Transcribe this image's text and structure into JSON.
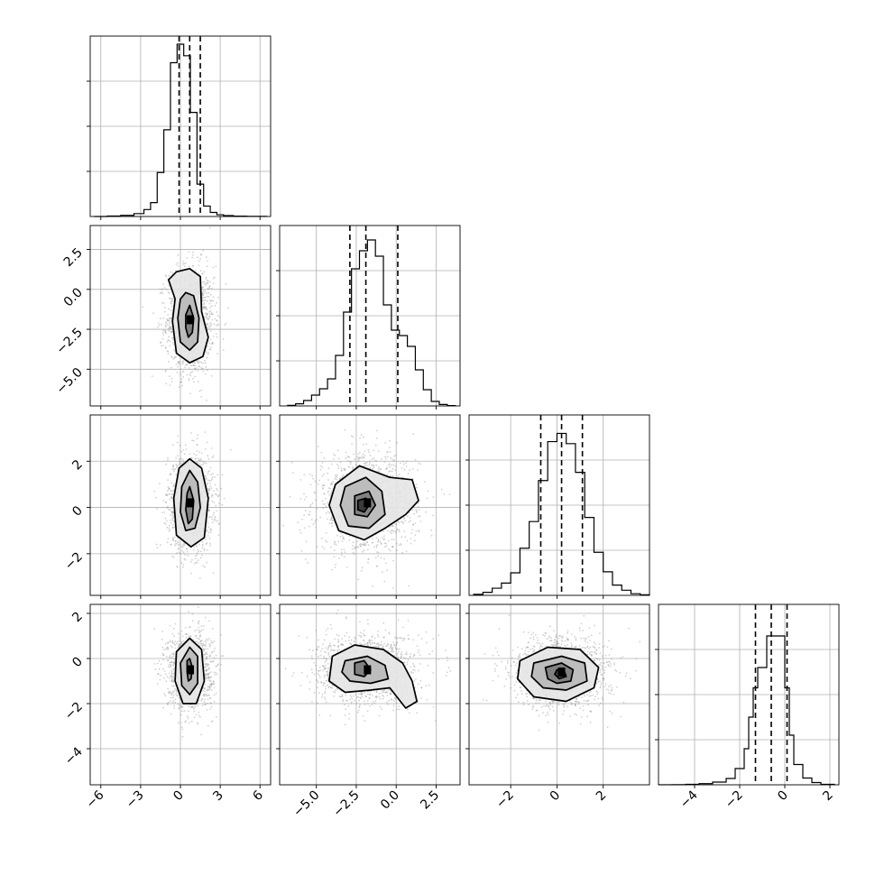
{
  "chart_data": {
    "type": "corner",
    "n_params": 4,
    "grid": true,
    "diagonal": [
      {
        "type": "histogram",
        "bin_edges": [
          -6.5,
          -5.5,
          -4.5,
          -3.5,
          -2.75,
          -2.25,
          -1.75,
          -1.25,
          -0.75,
          -0.25,
          0.25,
          0.75,
          1.25,
          1.75,
          2.25,
          2.75,
          3.25,
          4,
          5,
          6.5
        ],
        "counts": [
          0,
          4,
          10,
          25,
          60,
          120,
          380,
          750,
          1330,
          1490,
          1390,
          900,
          280,
          90,
          35,
          15,
          8,
          3,
          1
        ],
        "ylim": [
          0,
          1560
        ],
        "quantiles": [
          -0.1,
          0.7,
          1.5
        ],
        "xlim": [
          -6.8,
          6.8
        ],
        "xticks": [
          -6,
          -3,
          0,
          3,
          6
        ],
        "xtick_labels": [
          "−6",
          "−3",
          "0",
          "3",
          "6"
        ]
      },
      {
        "type": "histogram",
        "bin_edges": [
          -6.8,
          -6.3,
          -5.8,
          -5.3,
          -4.8,
          -4.3,
          -3.8,
          -3.3,
          -2.8,
          -2.3,
          -1.8,
          -1.3,
          -0.8,
          -0.3,
          0.2,
          0.7,
          1.2,
          1.7,
          2.2,
          2.7,
          3.2,
          3.7
        ],
        "counts": [
          3,
          12,
          30,
          60,
          95,
          150,
          280,
          520,
          760,
          860,
          920,
          830,
          560,
          420,
          390,
          330,
          200,
          90,
          25,
          8,
          2
        ],
        "ylim": [
          0,
          1000
        ],
        "quantiles": [
          -2.9,
          -1.9,
          0.1
        ],
        "xlim": [
          -7.3,
          4.0
        ],
        "xticks": [
          -5.0,
          -2.5,
          0.0,
          2.5
        ],
        "xtick_labels": [
          "−5.0",
          "−2.5",
          "0.0",
          "2.5"
        ]
      },
      {
        "type": "histogram",
        "bin_edges": [
          -3.6,
          -3.2,
          -2.8,
          -2.4,
          -2.0,
          -1.6,
          -1.2,
          -0.8,
          -0.4,
          0.0,
          0.4,
          0.8,
          1.2,
          1.6,
          2.0,
          2.4,
          2.8,
          3.2,
          3.6,
          4.0
        ],
        "counts": [
          5,
          15,
          35,
          60,
          110,
          230,
          360,
          560,
          750,
          790,
          740,
          600,
          380,
          210,
          115,
          50,
          25,
          8,
          3
        ],
        "ylim": [
          0,
          880
        ],
        "quantiles": [
          -0.7,
          0.2,
          1.1
        ],
        "xlim": [
          -3.8,
          4.0
        ],
        "xticks": [
          -2,
          0,
          2
        ],
        "xtick_labels": [
          "−2",
          "0",
          "2"
        ]
      },
      {
        "type": "histogram",
        "bin_edges": [
          -5.6,
          -5.0,
          -4.4,
          -3.8,
          -3.2,
          -2.6,
          -2.2,
          -1.8,
          -1.6,
          -1.4,
          -1.2,
          -0.8,
          -0.4,
          0.0,
          0.2,
          0.4,
          0.8,
          1.2,
          1.6,
          2.2
        ],
        "counts": [
          1,
          3,
          10,
          25,
          60,
          140,
          360,
          800,
          1500,
          2150,
          2600,
          3300,
          3300,
          2150,
          1100,
          450,
          150,
          50,
          10
        ],
        "ylim": [
          0,
          4000
        ],
        "quantiles": [
          -1.3,
          -0.6,
          0.1
        ],
        "xlim": [
          -5.6,
          2.4
        ],
        "xticks": [
          -4,
          -2,
          0,
          2
        ],
        "xtick_labels": [
          "−4",
          "−2",
          "0",
          "2"
        ]
      }
    ],
    "pairs": [
      {
        "row": 1,
        "col": 0,
        "x_mean": 0.75,
        "y_mean": -1.9,
        "x_sd": 0.85,
        "y_sd": 1.6,
        "x_range": [
          -6.8,
          6.8
        ],
        "y_range": [
          -7.3,
          4.0
        ],
        "yticks": [
          -5.0,
          -2.5,
          0.0,
          2.5
        ],
        "ytick_labels": [
          "−5.0",
          "−2.5",
          "0.0",
          "2.5"
        ],
        "contours": [
          {
            "points": [
              [
                -0.3,
                1.1
              ],
              [
                0.7,
                1.3
              ],
              [
                1.5,
                0.8
              ],
              [
                1.6,
                -1.4
              ],
              [
                2.1,
                -3.0
              ],
              [
                1.7,
                -4.2
              ],
              [
                0.7,
                -4.6
              ],
              [
                -0.3,
                -4.0
              ],
              [
                -0.6,
                -2.0
              ],
              [
                -0.4,
                -0.6
              ],
              [
                -0.9,
                0.6
              ]
            ]
          },
          {
            "points": [
              [
                0.4,
                -0.2
              ],
              [
                1.0,
                -0.4
              ],
              [
                1.4,
                -1.8
              ],
              [
                1.3,
                -3.3
              ],
              [
                0.7,
                -3.8
              ],
              [
                0.0,
                -3.3
              ],
              [
                -0.2,
                -1.8
              ],
              [
                0.0,
                -0.6
              ]
            ]
          },
          {
            "points": [
              [
                0.7,
                -1.0
              ],
              [
                1.0,
                -1.8
              ],
              [
                0.9,
                -2.7
              ],
              [
                0.6,
                -3.0
              ],
              [
                0.4,
                -2.4
              ],
              [
                0.4,
                -1.6
              ]
            ]
          }
        ]
      },
      {
        "row": 2,
        "col": 0,
        "x_mean": 0.75,
        "y_mean": 0.2,
        "x_sd": 0.8,
        "y_sd": 1.0,
        "x_range": [
          -6.8,
          6.8
        ],
        "y_range": [
          -3.8,
          4.0
        ],
        "yticks": [
          -2,
          0,
          2
        ],
        "ytick_labels": [
          "−2",
          "0",
          "2"
        ],
        "contours": [
          {
            "points": [
              [
                0.7,
                2.1
              ],
              [
                1.6,
                1.7
              ],
              [
                2.1,
                0.4
              ],
              [
                1.8,
                -1.3
              ],
              [
                0.8,
                -1.7
              ],
              [
                -0.3,
                -1.2
              ],
              [
                -0.5,
                0.4
              ],
              [
                -0.1,
                1.7
              ]
            ]
          },
          {
            "points": [
              [
                0.7,
                1.6
              ],
              [
                1.3,
                1.1
              ],
              [
                1.5,
                0.0
              ],
              [
                1.1,
                -0.9
              ],
              [
                0.4,
                -1.0
              ],
              [
                0.0,
                -0.2
              ],
              [
                0.1,
                0.9
              ]
            ]
          },
          {
            "points": [
              [
                0.7,
                0.9
              ],
              [
                1.0,
                0.3
              ],
              [
                0.9,
                -0.5
              ],
              [
                0.6,
                -0.7
              ],
              [
                0.4,
                -0.1
              ],
              [
                0.5,
                0.6
              ]
            ]
          }
        ]
      },
      {
        "row": 2,
        "col": 1,
        "x_mean": -1.8,
        "y_mean": 0.2,
        "x_sd": 1.5,
        "y_sd": 1.0,
        "x_range": [
          -7.3,
          4.0
        ],
        "y_range": [
          -3.8,
          4.0
        ],
        "contours": [
          {
            "points": [
              [
                -3.8,
                1.0
              ],
              [
                -2.3,
                1.8
              ],
              [
                -0.4,
                1.3
              ],
              [
                1.0,
                1.2
              ],
              [
                1.4,
                0.3
              ],
              [
                0.6,
                -0.3
              ],
              [
                -0.7,
                -0.9
              ],
              [
                -2.0,
                -1.4
              ],
              [
                -3.6,
                -1.0
              ],
              [
                -4.2,
                0.1
              ]
            ]
          },
          {
            "points": [
              [
                -3.2,
                0.9
              ],
              [
                -1.9,
                1.3
              ],
              [
                -0.9,
                0.7
              ],
              [
                -0.7,
                -0.3
              ],
              [
                -1.7,
                -0.9
              ],
              [
                -3.0,
                -0.8
              ],
              [
                -3.5,
                0.1
              ]
            ]
          },
          {
            "points": [
              [
                -2.6,
                0.5
              ],
              [
                -1.7,
                0.7
              ],
              [
                -1.3,
                0.1
              ],
              [
                -1.8,
                -0.4
              ],
              [
                -2.6,
                -0.3
              ]
            ]
          },
          {
            "points": [
              [
                -2.4,
                0.3
              ],
              [
                -1.9,
                0.4
              ],
              [
                -1.7,
                0.1
              ],
              [
                -2.0,
                -0.2
              ],
              [
                -2.4,
                -0.1
              ]
            ]
          }
        ]
      },
      {
        "row": 3,
        "col": 0,
        "x_mean": 0.75,
        "y_mean": -0.5,
        "x_sd": 0.8,
        "y_sd": 0.8,
        "x_range": [
          -6.8,
          6.8
        ],
        "y_range": [
          -5.6,
          2.4
        ],
        "yticks": [
          -4,
          -2,
          0,
          2
        ],
        "ytick_labels": [
          "−4",
          "−2",
          "0",
          "2"
        ],
        "contours": [
          {
            "points": [
              [
                0.7,
                0.9
              ],
              [
                1.6,
                0.4
              ],
              [
                1.8,
                -1.0
              ],
              [
                1.2,
                -2.0
              ],
              [
                0.2,
                -2.0
              ],
              [
                -0.4,
                -1.0
              ],
              [
                -0.3,
                0.3
              ]
            ]
          },
          {
            "points": [
              [
                0.7,
                0.5
              ],
              [
                1.3,
                0.1
              ],
              [
                1.3,
                -1.1
              ],
              [
                0.7,
                -1.6
              ],
              [
                0.1,
                -1.2
              ],
              [
                0.0,
                -0.2
              ]
            ]
          },
          {
            "points": [
              [
                0.7,
                0.0
              ],
              [
                0.9,
                -0.4
              ],
              [
                0.8,
                -0.9
              ],
              [
                0.6,
                -1.0
              ],
              [
                0.5,
                -0.6
              ],
              [
                0.5,
                -0.1
              ]
            ]
          }
        ]
      },
      {
        "row": 3,
        "col": 1,
        "x_mean": -1.8,
        "y_mean": -0.5,
        "x_sd": 1.5,
        "y_sd": 0.75,
        "x_range": [
          -7.3,
          4.0
        ],
        "y_range": [
          -5.6,
          2.4
        ],
        "contours": [
          {
            "points": [
              [
                -4.0,
                0.1
              ],
              [
                -2.6,
                0.6
              ],
              [
                -0.8,
                0.4
              ],
              [
                0.4,
                -0.2
              ],
              [
                1.0,
                -1.0
              ],
              [
                1.3,
                -1.9
              ],
              [
                0.6,
                -2.2
              ],
              [
                -0.4,
                -1.3
              ],
              [
                -1.6,
                -1.4
              ],
              [
                -3.2,
                -1.5
              ],
              [
                -4.2,
                -1.0
              ]
            ]
          },
          {
            "points": [
              [
                -3.2,
                -0.1
              ],
              [
                -1.8,
                0.1
              ],
              [
                -0.7,
                -0.3
              ],
              [
                -0.5,
                -0.9
              ],
              [
                -1.6,
                -1.1
              ],
              [
                -2.9,
                -1.0
              ],
              [
                -3.4,
                -0.6
              ]
            ]
          },
          {
            "points": [
              [
                -2.6,
                -0.2
              ],
              [
                -2.0,
                -0.1
              ],
              [
                -1.6,
                -0.5
              ],
              [
                -2.0,
                -0.8
              ],
              [
                -2.6,
                -0.7
              ]
            ]
          }
        ]
      },
      {
        "row": 3,
        "col": 2,
        "x_mean": 0.2,
        "y_mean": -0.6,
        "x_sd": 1.0,
        "y_sd": 0.75,
        "x_range": [
          -3.8,
          4.0
        ],
        "y_range": [
          -5.6,
          2.4
        ],
        "contours": [
          {
            "points": [
              [
                -1.6,
                -0.1
              ],
              [
                -0.4,
                0.5
              ],
              [
                1.0,
                0.4
              ],
              [
                1.8,
                -0.4
              ],
              [
                1.6,
                -1.3
              ],
              [
                0.4,
                -1.9
              ],
              [
                -1.0,
                -1.7
              ],
              [
                -1.7,
                -0.9
              ]
            ]
          },
          {
            "points": [
              [
                -1.0,
                -0.2
              ],
              [
                0.2,
                0.1
              ],
              [
                1.2,
                -0.2
              ],
              [
                1.3,
                -1.0
              ],
              [
                0.4,
                -1.4
              ],
              [
                -0.6,
                -1.3
              ],
              [
                -1.1,
                -0.8
              ]
            ]
          },
          {
            "points": [
              [
                -0.5,
                -0.4
              ],
              [
                0.2,
                -0.2
              ],
              [
                0.7,
                -0.5
              ],
              [
                0.6,
                -1.0
              ],
              [
                0.0,
                -1.1
              ],
              [
                -0.4,
                -0.9
              ]
            ]
          },
          {
            "points": [
              [
                0.0,
                -0.5
              ],
              [
                0.3,
                -0.5
              ],
              [
                0.4,
                -0.8
              ],
              [
                0.1,
                -0.9
              ],
              [
                -0.1,
                -0.7
              ]
            ]
          }
        ]
      }
    ]
  }
}
